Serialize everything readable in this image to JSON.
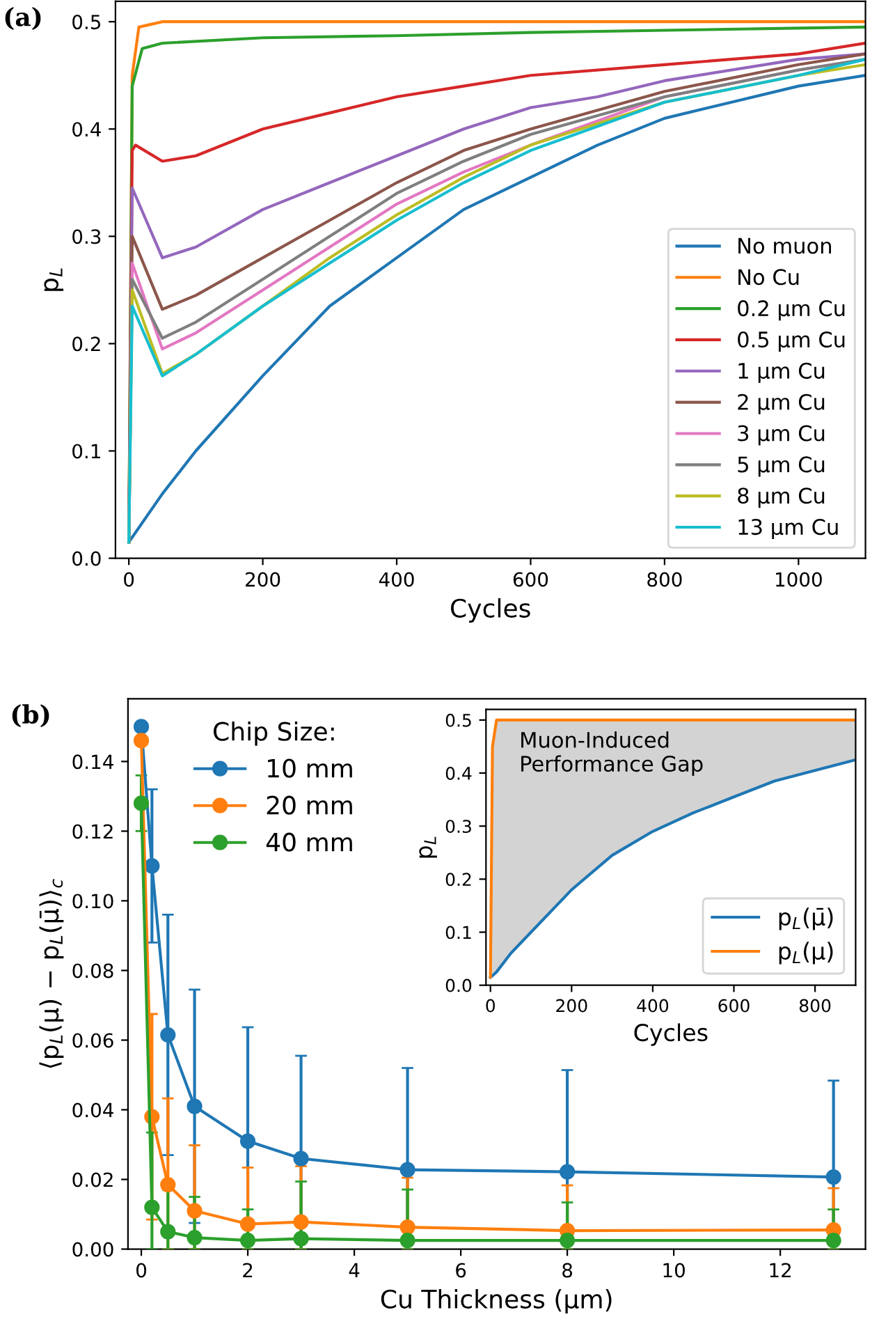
{
  "chart_data": [
    {
      "type": "line",
      "title": "(a)",
      "xlabel": "Cycles",
      "ylabel": "p$_{L}$",
      "xlim": [
        -20,
        1100
      ],
      "ylim": [
        0,
        0.519
      ],
      "xticks": [
        0,
        200,
        400,
        600,
        800,
        1000
      ],
      "yticks": [
        {
          "value": 0,
          "label": "0.0"
        },
        0.1,
        0.2,
        0.3,
        0.4,
        0.5
      ],
      "grid": false,
      "legend": "bottom right",
      "marker": "none",
      "line_style": "solid",
      "series": [
        {
          "name": "No muon",
          "color": "#1f77b4",
          "x": [
            0,
            50,
            100,
            200,
            300,
            400,
            500,
            600,
            700,
            800,
            900,
            1000,
            1100
          ],
          "values": [
            0.015,
            0.06,
            0.1,
            0.17,
            0.235,
            0.28,
            0.325,
            0.355,
            0.385,
            0.41,
            0.425,
            0.44,
            0.45
          ]
        },
        {
          "name": "No Cu",
          "color": "#ff7f0e",
          "x": [
            0,
            5,
            15,
            50,
            200,
            400,
            600,
            800,
            1000,
            1100
          ],
          "values": [
            0.015,
            0.45,
            0.495,
            0.5,
            0.5,
            0.5,
            0.5,
            0.5,
            0.5,
            0.5
          ]
        },
        {
          "name": "0.2 μm Cu",
          "color": "#2ca02c",
          "x": [
            0,
            5,
            20,
            50,
            200,
            400,
            600,
            800,
            1000,
            1100
          ],
          "values": [
            0.015,
            0.44,
            0.475,
            0.48,
            0.485,
            0.487,
            0.49,
            0.492,
            0.494,
            0.495
          ]
        },
        {
          "name": "0.5 μm Cu",
          "color": "#d62728",
          "x": [
            0,
            5,
            10,
            50,
            100,
            200,
            300,
            400,
            500,
            600,
            800,
            1000,
            1100
          ],
          "values": [
            0.015,
            0.38,
            0.385,
            0.37,
            0.375,
            0.4,
            0.415,
            0.43,
            0.44,
            0.45,
            0.46,
            0.47,
            0.48
          ]
        },
        {
          "name": "1 μm Cu",
          "color": "#9467bd",
          "x": [
            0,
            5,
            50,
            100,
            200,
            300,
            400,
            500,
            600,
            700,
            800,
            1000,
            1100
          ],
          "values": [
            0.015,
            0.345,
            0.28,
            0.29,
            0.325,
            0.35,
            0.375,
            0.4,
            0.42,
            0.43,
            0.445,
            0.465,
            0.47
          ]
        },
        {
          "name": "2 μm Cu",
          "color": "#8c564b",
          "x": [
            0,
            5,
            50,
            100,
            200,
            300,
            400,
            500,
            600,
            800,
            1000,
            1100
          ],
          "values": [
            0.015,
            0.3,
            0.232,
            0.245,
            0.28,
            0.315,
            0.35,
            0.38,
            0.4,
            0.435,
            0.46,
            0.47
          ]
        },
        {
          "name": "3 μm Cu",
          "color": "#e377c2",
          "x": [
            0,
            5,
            50,
            100,
            200,
            300,
            400,
            500,
            600,
            800,
            1000,
            1100
          ],
          "values": [
            0.015,
            0.275,
            0.195,
            0.21,
            0.25,
            0.29,
            0.33,
            0.36,
            0.385,
            0.43,
            0.455,
            0.465
          ]
        },
        {
          "name": "5 μm Cu",
          "color": "#7f7f7f",
          "x": [
            0,
            5,
            50,
            100,
            200,
            300,
            400,
            500,
            600,
            800,
            1000,
            1100
          ],
          "values": [
            0.015,
            0.26,
            0.205,
            0.22,
            0.26,
            0.3,
            0.34,
            0.37,
            0.395,
            0.43,
            0.455,
            0.465
          ]
        },
        {
          "name": "8 μm Cu",
          "color": "#bcbd22",
          "x": [
            0,
            5,
            50,
            100,
            200,
            300,
            400,
            500,
            600,
            800,
            1000,
            1100
          ],
          "values": [
            0.015,
            0.25,
            0.172,
            0.19,
            0.235,
            0.28,
            0.32,
            0.355,
            0.385,
            0.425,
            0.45,
            0.46
          ]
        },
        {
          "name": "13 μm Cu",
          "color": "#17becf",
          "x": [
            0,
            5,
            50,
            100,
            200,
            300,
            400,
            500,
            600,
            800,
            1000,
            1100
          ],
          "values": [
            0.015,
            0.235,
            0.17,
            0.19,
            0.235,
            0.275,
            0.315,
            0.35,
            0.38,
            0.425,
            0.45,
            0.465
          ]
        }
      ]
    },
    {
      "type": "line",
      "title": "(b)",
      "xlabel": "Cu Thickness (μm)",
      "ylabel": "⟨p$_{L}$(μ) − p$_{L}$(μ̄)⟩$_{c}$",
      "legend_title": "Chip Size:",
      "xlim": [
        -0.25,
        13.6
      ],
      "ylim": [
        0,
        0.158
      ],
      "xticks": [
        0,
        2,
        4,
        6,
        8,
        10,
        12
      ],
      "yticks": [
        {
          "value": 0,
          "label": "0.00"
        },
        {
          "value": 0.02,
          "label": "0.02"
        },
        {
          "value": 0.04,
          "label": "0.04"
        },
        {
          "value": 0.06,
          "label": "0.06"
        },
        {
          "value": 0.08,
          "label": "0.08"
        },
        {
          "value": 0.1,
          "label": "0.10"
        },
        {
          "value": 0.12,
          "label": "0.12"
        },
        {
          "value": 0.14,
          "label": "0.14"
        }
      ],
      "grid": false,
      "legend": "top left",
      "marker": "circle",
      "line_style": "solid",
      "x": [
        0,
        0.2,
        0.5,
        1,
        2,
        3,
        5,
        8,
        13
      ],
      "series": [
        {
          "name": "10 mm",
          "color": "#1f77b4",
          "values": [
            0.15,
            0.11,
            0.0615,
            0.041,
            0.031,
            0.026,
            0.0228,
            0.0222,
            0.0207
          ],
          "errors": [
            null,
            0.022,
            [
              0.027,
              0.096
            ],
            [
              0.0075,
              0.0745
            ],
            [
              0,
              0.0637
            ],
            [
              0,
              0.0555
            ],
            [
              0,
              0.052
            ],
            [
              0,
              0.0514
            ],
            [
              0,
              0.0484
            ]
          ]
        },
        {
          "name": "20 mm",
          "color": "#ff7f0e",
          "values": [
            0.146,
            0.038,
            0.0185,
            0.011,
            0.0072,
            0.0078,
            0.0063,
            0.0053,
            0.0055
          ],
          "errors": [
            null,
            0.0295,
            [
              0,
              0.0433
            ],
            [
              0,
              0.0298
            ],
            [
              0,
              0.0234
            ],
            [
              0,
              0.0238
            ],
            [
              0,
              0.0205
            ],
            [
              0,
              0.0183
            ],
            [
              0,
              0.0175
            ]
          ]
        },
        {
          "name": "40 mm",
          "color": "#2ca02c",
          "values": [
            0.128,
            0.012,
            0.005,
            0.0033,
            0.0025,
            0.003,
            0.0025,
            0.0025,
            0.0025
          ],
          "errors": [
            0.008,
            [
              0,
              0.0335
            ],
            [
              0,
              0.017
            ],
            [
              0,
              0.015
            ],
            [
              0,
              0.0114
            ],
            [
              0,
              0.0194
            ],
            [
              0,
              0.0171
            ],
            [
              0,
              0.0134
            ],
            [
              0,
              0.0114
            ]
          ]
        }
      ]
    },
    {
      "type": "line",
      "xlabel": "Cycles",
      "ylabel": "p$_{L}$",
      "xlim": [
        -11,
        900
      ],
      "ylim": [
        0,
        0.52
      ],
      "xticks": [
        0,
        200,
        400,
        600,
        800
      ],
      "yticks": [
        {
          "value": 0,
          "label": "0.0"
        },
        0.1,
        0.2,
        0.3,
        0.4,
        0.5
      ],
      "grid": false,
      "legend": "bottom right",
      "marker": "none",
      "line_style": "solid",
      "annotations": [
        "Muon-Induced\nPerformance Gap"
      ],
      "x": [
        0,
        5,
        15,
        50,
        100,
        200,
        300,
        400,
        500,
        600,
        700,
        800,
        900
      ],
      "series": [
        {
          "name": "p$_{L}$(μ̄)",
          "color": "#1f77b4",
          "values": [
            0.015,
            0.018,
            0.025,
            0.06,
            0.1,
            0.18,
            0.245,
            0.29,
            0.325,
            0.355,
            0.385,
            0.405,
            0.425
          ]
        },
        {
          "name": "p$_{L}$(μ)",
          "color": "#ff7f0e",
          "values": [
            0.015,
            0.45,
            0.5,
            0.5,
            0.5,
            0.5,
            0.5,
            0.5,
            0.5,
            0.5,
            0.5,
            0.5,
            0.5
          ],
          "lower": [
            0.015,
            0.018,
            0.025,
            0.06,
            0.1,
            0.18,
            0.245,
            0.29,
            0.325,
            0.355,
            0.385,
            0.405,
            0.425
          ],
          "upper": [
            0.015,
            0.45,
            0.5,
            0.5,
            0.5,
            0.5,
            0.5,
            0.5,
            0.5,
            0.5,
            0.5,
            0.5,
            0.5
          ]
        }
      ]
    }
  ]
}
